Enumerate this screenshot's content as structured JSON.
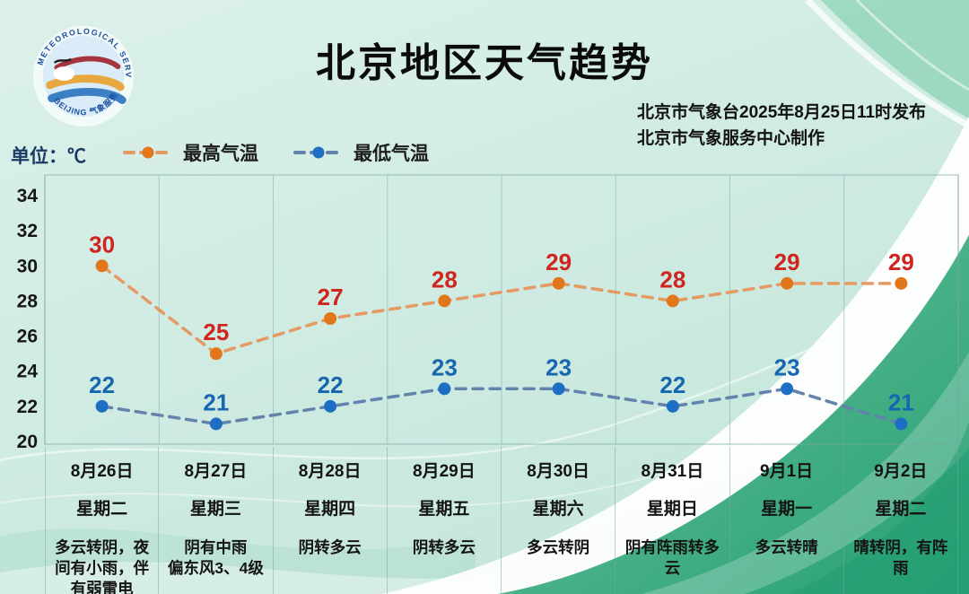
{
  "header": {
    "title": "北京地区天气趋势",
    "issued_by": "北京市气象台2025年8月25日11时发布",
    "produced_by": "北京市气象服务中心制作",
    "logo_text_top": "METEOROLOGICAL SERVICE",
    "logo_text_bottom": "BEIJING 气象服务"
  },
  "unit_label": "单位：℃",
  "legend": {
    "high_label": "最高气温",
    "low_label": "最低气温"
  },
  "colors": {
    "high_line": "#e49a62",
    "high_point": "#e2761b",
    "high_value": "#d0241e",
    "low_line": "#6383ad",
    "low_point": "#1e6fc4",
    "low_value": "#1766b0",
    "grid": "rgba(122,168,162,0.5)",
    "axis_text": "#171717"
  },
  "chart_data": {
    "type": "line",
    "categories": [
      "8月26日",
      "8月27日",
      "8月28日",
      "8月29日",
      "8月30日",
      "8月31日",
      "9月1日",
      "9月2日"
    ],
    "weekdays": [
      "星期二",
      "星期三",
      "星期四",
      "星期五",
      "星期六",
      "星期日",
      "星期一",
      "星期二"
    ],
    "weather": [
      "多云转阴，夜间有小雨，伴有弱雷电",
      "阴有中雨\n偏东风3、4级",
      "阴转多云",
      "阴转多云",
      "多云转阴",
      "阴有阵雨转多云",
      "多云转晴",
      "晴转阴，有阵雨"
    ],
    "series": [
      {
        "name": "最高气温",
        "role": "high",
        "values": [
          30,
          25,
          27,
          28,
          29,
          28,
          29,
          29
        ]
      },
      {
        "name": "最低气温",
        "role": "low",
        "values": [
          22,
          21,
          22,
          23,
          23,
          22,
          23,
          21
        ]
      }
    ],
    "ylim": [
      20,
      34
    ],
    "yticks": [
      34,
      32,
      30,
      28,
      26,
      24,
      22,
      20
    ],
    "grid": "vertical-only",
    "legend_position": "top-left"
  }
}
